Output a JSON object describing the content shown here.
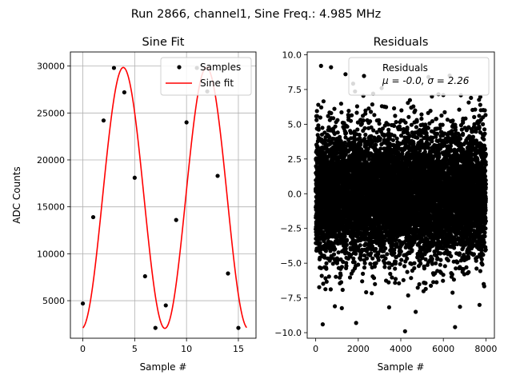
{
  "figure_title": "Run 2866, channel1, Sine Freq.: 4.985 MHz",
  "chart_data": [
    {
      "type": "scatter+line",
      "title": "Sine Fit",
      "xlabel": "Sample #",
      "ylabel": "ADC Counts",
      "xlim": [
        -1.2,
        16.7
      ],
      "ylim": [
        1000,
        31500
      ],
      "xticks": [
        0,
        5,
        10,
        15
      ],
      "yticks": [
        5000,
        10000,
        15000,
        20000,
        25000,
        30000
      ],
      "grid": true,
      "legend_position": "upper-right",
      "series": [
        {
          "name": "Samples",
          "kind": "markers",
          "color": "#000000",
          "x": [
            0,
            1,
            2,
            3,
            4,
            5,
            6,
            7,
            8,
            9,
            10,
            11,
            12,
            13,
            14,
            15
          ],
          "y": [
            4700,
            13900,
            24200,
            29800,
            27200,
            18100,
            7600,
            2100,
            4500,
            13600,
            24000,
            29800,
            27300,
            18300,
            7900,
            2100
          ]
        },
        {
          "name": "Sine fit",
          "kind": "line",
          "color": "#ff0000",
          "model": {
            "offset": 15950,
            "amplitude": 13900,
            "period": 8.025,
            "phase_deg": -85,
            "x_start": 0,
            "x_end": 15.8
          }
        }
      ]
    },
    {
      "type": "scatter",
      "title": "Residuals",
      "xlabel": "Sample #",
      "ylabel": "",
      "xlim": [
        -400,
        8400
      ],
      "ylim": [
        -10.4,
        10.2
      ],
      "xticks": [
        0,
        2000,
        4000,
        6000,
        8000
      ],
      "yticks": [
        -10.0,
        -7.5,
        -5.0,
        -2.5,
        0.0,
        2.5,
        5.0,
        7.5,
        10.0
      ],
      "ytick_labels": [
        "−10.0",
        "−7.5",
        "−5.0",
        "−2.5",
        "0.0",
        "2.5",
        "5.0",
        "7.5",
        "10.0"
      ],
      "grid": false,
      "legend_position": "upper-right",
      "legend_label": "Residuals",
      "legend_stats": "μ = -0.0, σ = 2.26",
      "series": [
        {
          "name": "Residuals",
          "kind": "markers",
          "color": "#000000",
          "n_points": 8000,
          "mean": 0.0,
          "std": 2.26,
          "x_range": [
            0,
            8000
          ],
          "outliers": [
            [
              250,
              9.2
            ],
            [
              720,
              9.1
            ],
            [
              1400,
              8.6
            ],
            [
              330,
              -9.4
            ],
            [
              1900,
              -9.3
            ],
            [
              4200,
              -9.9
            ],
            [
              6550,
              -9.6
            ],
            [
              3100,
              7.6
            ],
            [
              5300,
              8.4
            ],
            [
              7700,
              -8.0
            ],
            [
              900,
              -8.1
            ],
            [
              2700,
              7.2
            ],
            [
              6000,
              7.1
            ],
            [
              4700,
              -8.5
            ],
            [
              7300,
              6.9
            ],
            [
              120,
              6.4
            ],
            [
              7950,
              6.0
            ]
          ]
        }
      ]
    }
  ]
}
